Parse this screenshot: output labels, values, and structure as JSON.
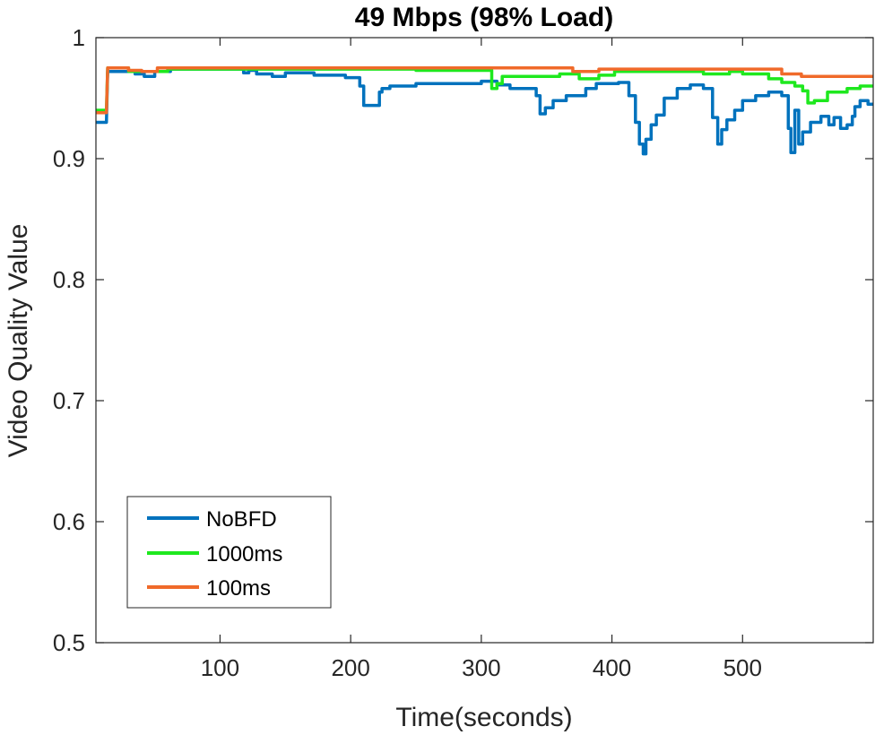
{
  "chart_data": {
    "type": "line",
    "title": "49 Mbps (98% Load)",
    "xlabel": "Time(seconds)",
    "ylabel": "Video Quality Value",
    "xlim": [
      5,
      600
    ],
    "ylim": [
      0.5,
      1.0
    ],
    "xticks": [
      100,
      200,
      300,
      400,
      500
    ],
    "yticks": [
      0.5,
      0.6,
      0.7,
      0.8,
      0.9,
      1.0
    ],
    "ytick_labels": [
      "0.5",
      "0.6",
      "0.7",
      "0.8",
      "0.9",
      "1"
    ],
    "xtick_labels": [
      "100",
      "200",
      "300",
      "400",
      "500"
    ],
    "grid": false,
    "legend_position": "bottom-left",
    "series": [
      {
        "name": "NoBFD",
        "color": "#0072BD",
        "x": [
          5,
          13,
          14,
          15,
          35,
          35,
          42,
          42,
          50,
          50,
          62,
          62,
          118,
          118,
          122,
          122,
          128,
          128,
          140,
          140,
          150,
          150,
          172,
          172,
          196,
          196,
          207,
          207,
          210,
          210,
          222,
          222,
          224,
          224,
          230,
          230,
          250,
          250,
          300,
          300,
          312,
          312,
          322,
          322,
          342,
          342,
          345,
          345,
          349,
          349,
          355,
          355,
          365,
          365,
          380,
          380,
          388,
          388,
          405,
          405,
          413,
          413,
          418,
          418,
          421,
          421,
          424,
          424,
          426,
          426,
          430,
          430,
          434,
          434,
          440,
          440,
          450,
          450,
          460,
          460,
          470,
          470,
          477,
          477,
          481,
          481,
          484,
          484,
          488,
          488,
          494,
          494,
          500,
          500,
          510,
          510,
          520,
          520,
          530,
          530,
          535,
          535,
          537,
          537,
          540,
          540,
          543,
          543,
          546,
          546,
          552,
          552,
          560,
          560,
          566,
          566,
          570,
          570,
          575,
          575,
          580,
          580,
          584,
          584,
          586,
          586,
          590,
          590,
          596,
          596,
          600
        ],
        "y": [
          0.93,
          0.93,
          0.972,
          0.972,
          0.972,
          0.97,
          0.97,
          0.968,
          0.968,
          0.972,
          0.972,
          0.974,
          0.974,
          0.971,
          0.971,
          0.973,
          0.973,
          0.97,
          0.97,
          0.968,
          0.968,
          0.971,
          0.971,
          0.969,
          0.969,
          0.967,
          0.967,
          0.96,
          0.96,
          0.944,
          0.944,
          0.955,
          0.955,
          0.958,
          0.958,
          0.96,
          0.96,
          0.962,
          0.962,
          0.964,
          0.964,
          0.961,
          0.961,
          0.958,
          0.958,
          0.952,
          0.952,
          0.937,
          0.937,
          0.942,
          0.942,
          0.948,
          0.948,
          0.952,
          0.952,
          0.958,
          0.958,
          0.962,
          0.962,
          0.963,
          0.963,
          0.952,
          0.952,
          0.93,
          0.93,
          0.912,
          0.912,
          0.904,
          0.904,
          0.916,
          0.916,
          0.928,
          0.928,
          0.936,
          0.936,
          0.95,
          0.95,
          0.958,
          0.958,
          0.961,
          0.961,
          0.958,
          0.958,
          0.934,
          0.934,
          0.912,
          0.912,
          0.924,
          0.924,
          0.932,
          0.932,
          0.94,
          0.94,
          0.948,
          0.948,
          0.952,
          0.952,
          0.955,
          0.955,
          0.952,
          0.952,
          0.925,
          0.925,
          0.905,
          0.905,
          0.94,
          0.94,
          0.912,
          0.912,
          0.922,
          0.922,
          0.93,
          0.93,
          0.935,
          0.935,
          0.928,
          0.928,
          0.934,
          0.934,
          0.925,
          0.925,
          0.928,
          0.928,
          0.935,
          0.935,
          0.943,
          0.943,
          0.948,
          0.948,
          0.945,
          0.945
        ]
      },
      {
        "name": "1000ms",
        "color": "#1EE81E",
        "x": [
          5,
          13,
          14,
          15,
          30,
          30,
          60,
          60,
          250,
          250,
          308,
          308,
          312,
          312,
          316,
          316,
          360,
          360,
          375,
          375,
          390,
          390,
          402,
          402,
          470,
          470,
          490,
          490,
          500,
          500,
          520,
          520,
          530,
          530,
          540,
          540,
          546,
          546,
          550,
          550,
          555,
          555,
          565,
          565,
          580,
          580,
          590,
          590,
          600
        ],
        "y": [
          0.94,
          0.94,
          0.975,
          0.975,
          0.975,
          0.972,
          0.972,
          0.974,
          0.974,
          0.973,
          0.973,
          0.958,
          0.958,
          0.962,
          0.962,
          0.968,
          0.968,
          0.97,
          0.97,
          0.966,
          0.966,
          0.969,
          0.969,
          0.972,
          0.972,
          0.97,
          0.97,
          0.972,
          0.972,
          0.97,
          0.97,
          0.966,
          0.966,
          0.963,
          0.963,
          0.96,
          0.96,
          0.956,
          0.956,
          0.946,
          0.946,
          0.948,
          0.948,
          0.955,
          0.955,
          0.958,
          0.958,
          0.96,
          0.96
        ]
      },
      {
        "name": "100ms",
        "color": "#F06A2A",
        "x": [
          5,
          13,
          14,
          15,
          30,
          30,
          40,
          40,
          52,
          52,
          370,
          370,
          390,
          390,
          530,
          530,
          545,
          545,
          580,
          580,
          600
        ],
        "y": [
          0.938,
          0.938,
          0.975,
          0.975,
          0.975,
          0.973,
          0.973,
          0.972,
          0.972,
          0.975,
          0.975,
          0.972,
          0.972,
          0.974,
          0.974,
          0.97,
          0.97,
          0.968,
          0.968,
          0.968,
          0.968
        ]
      }
    ]
  }
}
